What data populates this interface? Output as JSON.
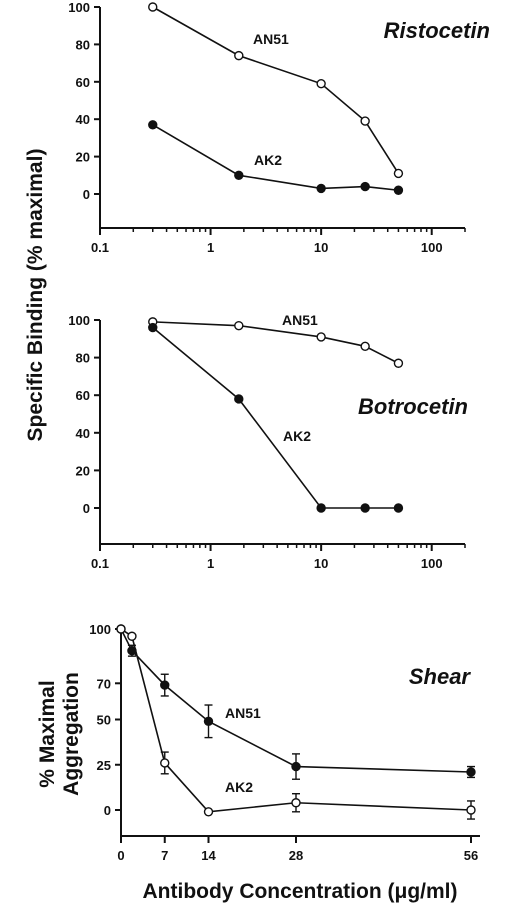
{
  "figure": {
    "shared_ylabel": "Specific Binding (% maximal)",
    "xlabel": "Antibody Concentration (μg/ml)"
  },
  "chart_data": [
    {
      "type": "line",
      "title": "Ristocetin",
      "xscale": "log",
      "xlim": [
        0.1,
        200
      ],
      "ylim": [
        0,
        100
      ],
      "xticks": [
        0.1,
        1,
        10,
        100
      ],
      "yticks": [
        0,
        20,
        40,
        60,
        80,
        100
      ],
      "xtick_labels": [
        "0.1",
        "1",
        "10",
        "100"
      ],
      "ytick_labels": [
        "0",
        "20",
        "40",
        "60",
        "80",
        "100"
      ],
      "series": [
        {
          "name": "AN51",
          "marker": "open-circle",
          "x": [
            0.3,
            1.8,
            10,
            25,
            50
          ],
          "y": [
            100,
            74,
            59,
            39,
            11
          ]
        },
        {
          "name": "AK2",
          "marker": "filled-circle",
          "x": [
            0.3,
            1.8,
            10,
            25,
            50
          ],
          "y": [
            37,
            10,
            3,
            4,
            2
          ]
        }
      ]
    },
    {
      "type": "line",
      "title": "Botrocetin",
      "xscale": "log",
      "xlim": [
        0.1,
        200
      ],
      "ylim": [
        0,
        100
      ],
      "xticks": [
        0.1,
        1,
        10,
        100
      ],
      "yticks": [
        0,
        20,
        40,
        60,
        80,
        100
      ],
      "xtick_labels": [
        "0.1",
        "1",
        "10",
        "100"
      ],
      "ytick_labels": [
        "0",
        "20",
        "40",
        "60",
        "80",
        "100"
      ],
      "series": [
        {
          "name": "AN51",
          "marker": "open-circle",
          "x": [
            0.3,
            1.8,
            10,
            25,
            50
          ],
          "y": [
            99,
            97,
            91,
            86,
            77
          ]
        },
        {
          "name": "AK2",
          "marker": "filled-circle",
          "x": [
            0.3,
            1.8,
            10,
            25,
            50
          ],
          "y": [
            96,
            58,
            0,
            0,
            0
          ]
        }
      ]
    },
    {
      "type": "line",
      "title": "Shear",
      "ylabel": "% Maximal Aggregation",
      "xscale": "linear",
      "xlim": [
        0,
        60
      ],
      "ylim": [
        0,
        100
      ],
      "xticks": [
        0,
        7,
        14,
        28,
        56
      ],
      "yticks": [
        0,
        25,
        50,
        70,
        100
      ],
      "xtick_labels": [
        "0",
        "7",
        "14",
        "28",
        "56"
      ],
      "ytick_labels": [
        "0",
        "25",
        "50",
        "70",
        "100"
      ],
      "series": [
        {
          "name": "AN51",
          "marker": "filled-circle",
          "x": [
            0,
            1.75,
            7,
            14,
            28,
            56
          ],
          "y": [
            100,
            88,
            69,
            49,
            24,
            21
          ],
          "err": [
            0,
            3,
            6,
            9,
            7,
            3
          ]
        },
        {
          "name": "AK2",
          "marker": "open-circle",
          "x": [
            0,
            1.75,
            7,
            14,
            28,
            56
          ],
          "y": [
            100,
            96,
            26,
            -1,
            4,
            0
          ],
          "err": [
            0,
            0,
            6,
            0,
            5,
            5
          ]
        }
      ]
    }
  ]
}
